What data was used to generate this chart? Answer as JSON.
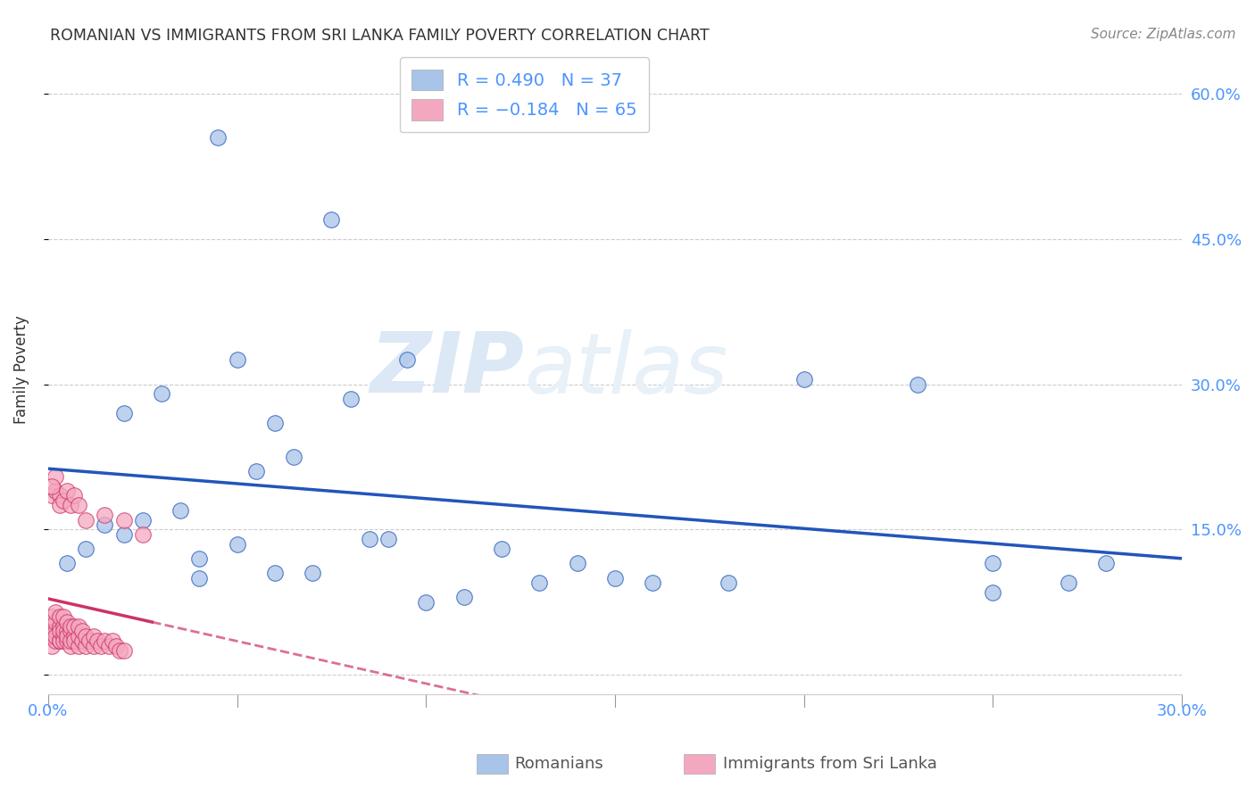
{
  "title": "ROMANIAN VS IMMIGRANTS FROM SRI LANKA FAMILY POVERTY CORRELATION CHART",
  "source": "Source: ZipAtlas.com",
  "ylabel": "Family Poverty",
  "watermark": "ZIPatlas",
  "R_romanian": 0.49,
  "N_romanian": 37,
  "R_srilanka": -0.184,
  "N_srilanka": 65,
  "color_romanian": "#a8c4e8",
  "color_srilanka": "#f4a8c0",
  "line_color_romanian": "#2255bb",
  "line_color_srilanka": "#cc3366",
  "xmin": 0.0,
  "xmax": 0.3,
  "ymin": -0.02,
  "ymax": 0.65,
  "axis_tick_color": "#4d94ff",
  "background_color": "#ffffff",
  "romanian_x": [
    0.045,
    0.075,
    0.095,
    0.03,
    0.02,
    0.05,
    0.08,
    0.06,
    0.13,
    0.005,
    0.01,
    0.02,
    0.025,
    0.015,
    0.035,
    0.04,
    0.05,
    0.055,
    0.065,
    0.07,
    0.085,
    0.09,
    0.1,
    0.11,
    0.12,
    0.14,
    0.15,
    0.16,
    0.2,
    0.23,
    0.25,
    0.27,
    0.28,
    0.25,
    0.04,
    0.06,
    0.18
  ],
  "romanian_y": [
    0.555,
    0.47,
    0.325,
    0.29,
    0.27,
    0.325,
    0.285,
    0.26,
    0.095,
    0.115,
    0.13,
    0.145,
    0.16,
    0.155,
    0.17,
    0.12,
    0.135,
    0.21,
    0.225,
    0.105,
    0.14,
    0.14,
    0.075,
    0.08,
    0.13,
    0.115,
    0.1,
    0.095,
    0.305,
    0.3,
    0.085,
    0.095,
    0.115,
    0.115,
    0.1,
    0.105,
    0.095
  ],
  "srilanka_x": [
    0.0,
    0.0,
    0.001,
    0.001,
    0.001,
    0.001,
    0.002,
    0.002,
    0.002,
    0.002,
    0.002,
    0.003,
    0.003,
    0.003,
    0.003,
    0.003,
    0.004,
    0.004,
    0.004,
    0.004,
    0.004,
    0.005,
    0.005,
    0.005,
    0.005,
    0.006,
    0.006,
    0.006,
    0.006,
    0.007,
    0.007,
    0.007,
    0.008,
    0.008,
    0.008,
    0.009,
    0.009,
    0.01,
    0.01,
    0.011,
    0.012,
    0.012,
    0.013,
    0.014,
    0.015,
    0.016,
    0.017,
    0.018,
    0.019,
    0.02,
    0.001,
    0.002,
    0.003,
    0.002,
    0.001,
    0.003,
    0.004,
    0.005,
    0.006,
    0.007,
    0.008,
    0.01,
    0.015,
    0.02,
    0.025
  ],
  "srilanka_y": [
    0.04,
    0.045,
    0.03,
    0.05,
    0.06,
    0.04,
    0.035,
    0.045,
    0.055,
    0.065,
    0.04,
    0.035,
    0.05,
    0.06,
    0.035,
    0.045,
    0.04,
    0.05,
    0.035,
    0.06,
    0.045,
    0.035,
    0.045,
    0.055,
    0.04,
    0.03,
    0.045,
    0.035,
    0.05,
    0.04,
    0.035,
    0.05,
    0.03,
    0.04,
    0.05,
    0.035,
    0.045,
    0.03,
    0.04,
    0.035,
    0.03,
    0.04,
    0.035,
    0.03,
    0.035,
    0.03,
    0.035,
    0.03,
    0.025,
    0.025,
    0.185,
    0.19,
    0.185,
    0.205,
    0.195,
    0.175,
    0.18,
    0.19,
    0.175,
    0.185,
    0.175,
    0.16,
    0.165,
    0.16,
    0.145
  ]
}
